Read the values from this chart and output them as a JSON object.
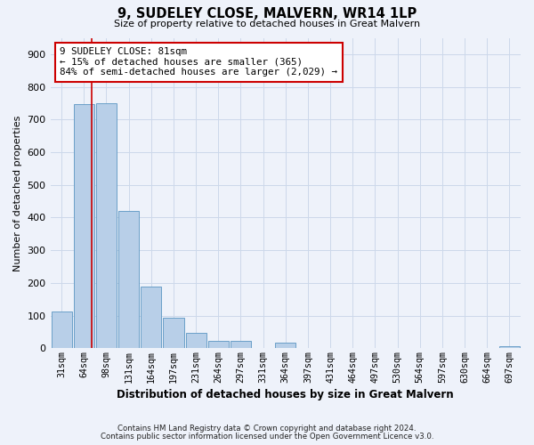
{
  "title": "9, SUDELEY CLOSE, MALVERN, WR14 1LP",
  "subtitle": "Size of property relative to detached houses in Great Malvern",
  "xlabel": "Distribution of detached houses by size in Great Malvern",
  "ylabel": "Number of detached properties",
  "bar_labels": [
    "31sqm",
    "64sqm",
    "98sqm",
    "131sqm",
    "164sqm",
    "197sqm",
    "231sqm",
    "264sqm",
    "297sqm",
    "331sqm",
    "364sqm",
    "397sqm",
    "431sqm",
    "464sqm",
    "497sqm",
    "530sqm",
    "564sqm",
    "597sqm",
    "630sqm",
    "664sqm",
    "697sqm"
  ],
  "bar_values": [
    113,
    748,
    750,
    420,
    190,
    93,
    47,
    22,
    22,
    0,
    17,
    0,
    0,
    0,
    0,
    0,
    0,
    0,
    0,
    0,
    5
  ],
  "bar_color": "#b8cfe8",
  "bar_edge_color": "#6a9fc8",
  "ylim": [
    0,
    950
  ],
  "yticks": [
    0,
    100,
    200,
    300,
    400,
    500,
    600,
    700,
    800,
    900
  ],
  "annotation_line1": "9 SUDELEY CLOSE: 81sqm",
  "annotation_line2": "← 15% of detached houses are smaller (365)",
  "annotation_line3": "84% of semi-detached houses are larger (2,029) →",
  "annotation_box_color": "#ffffff",
  "annotation_box_edge_color": "#cc0000",
  "property_line_color": "#cc0000",
  "property_line_x": 1.35,
  "grid_color": "#ccd8ea",
  "background_color": "#eef2fa",
  "footer_line1": "Contains HM Land Registry data © Crown copyright and database right 2024.",
  "footer_line2": "Contains public sector information licensed under the Open Government Licence v3.0."
}
